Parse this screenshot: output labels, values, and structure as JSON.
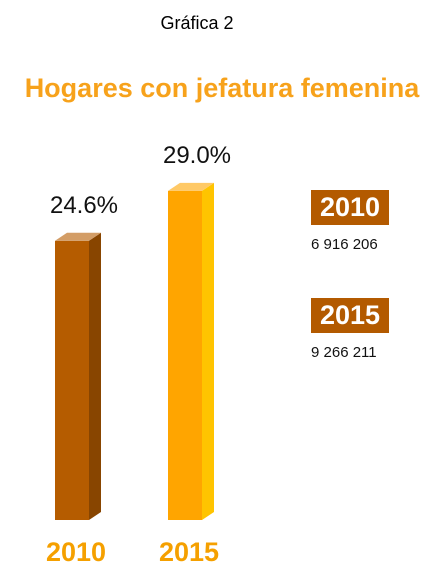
{
  "chart_data": {
    "type": "bar3d",
    "subtitle": "Gráfica 2",
    "title": "Hogares con jefatura femenina",
    "categories": [
      "2010",
      "2015"
    ],
    "values": [
      24.6,
      29.0
    ],
    "value_labels": [
      "24.6%",
      "29.0%"
    ],
    "colors": [
      "#b55c00",
      "#ffa500"
    ],
    "legend_color": "#b35a00",
    "totals": [
      6916206,
      9266211
    ],
    "total_labels": [
      "6 916 206",
      "9 266 211"
    ]
  }
}
